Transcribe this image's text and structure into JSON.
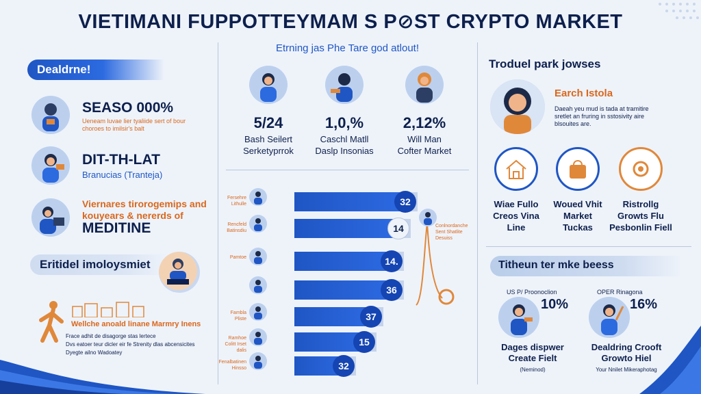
{
  "title": "VIETIMANI FUPPOTTEYMAM S P⊘ST CRYPTO MARKET",
  "left": {
    "banner": "Dealdrne!",
    "item1": {
      "title": "SEASO 000%",
      "desc": "Ueneam luvae lier tyaliide sert of bour choroes to imilsir's balt"
    },
    "item2": {
      "title": "DIT-TH-LAT",
      "sub": "Branucias (Tranteja)"
    },
    "item3": {
      "line1": "Viernares tirorogemips and",
      "line2": "kouyears & nererds of",
      "title": "MEDITINE"
    },
    "banner2": "Eritidel imoloysmiet",
    "orange_line": "Wellche anoald linane Marmry Inens",
    "bullets": [
      "Frace adhit de disagorge stas lertece",
      "Dvs eatoer teur dicler eir fe Strenity dlas abcensicites",
      "Dyegte ailno Wadoatey"
    ]
  },
  "middle": {
    "subtitle": "Etrning jas Phe Tare god atlout!",
    "stats": [
      {
        "value": "5/24",
        "label1": "Bash Seilert",
        "label2": "Serketyprrok"
      },
      {
        "value": "1,0,%",
        "label1": "Caschl Matll",
        "label2": "Daslp Insonias"
      },
      {
        "value": "2,12%",
        "label1": "Will Man",
        "label2": "Cofter Market"
      }
    ],
    "bars": [
      {
        "label": "Fersehre Lithulle",
        "value": "32"
      },
      {
        "label": "Rencfeld Batinsdiu",
        "value": "14"
      },
      {
        "label": "Pamtoe",
        "value": "14."
      },
      {
        "label": "",
        "value": "36"
      },
      {
        "label": "Fambla Pliste",
        "value": "37"
      },
      {
        "label": "Ramhoe Colitt Irset dalis",
        "value": "15"
      },
      {
        "label": "Fenalbatinen Hinsso",
        "value": "32"
      }
    ],
    "side_note": "Conlnordanche Sent Shatlite Desuiss"
  },
  "right": {
    "title": "Troduel park jowses",
    "card_title": "Earch Istola",
    "card_desc": "Daeah yeu mud is tada at tramitire sretlet an fruring in sstosivity aire blsouites are.",
    "rings": [
      {
        "label1": "Wiae Fullo",
        "label2": "Creos Vina",
        "label3": "Line"
      },
      {
        "label1": "Woued Vhit",
        "label2": "Market",
        "label3": "Tuckas"
      },
      {
        "label1": "Ristrollg",
        "label2": "Growts Flu",
        "label3": "Pesbonlin Fiell"
      }
    ],
    "banner": "Titheun ter mke beess",
    "pct_cards": [
      {
        "top": "US P/ Proonoclion",
        "pct": "10%",
        "cap1": "Dages dispwer",
        "cap2": "Create Fielt",
        "tiny": "(Neminod)"
      },
      {
        "top": "OPER Rinagona",
        "pct": "16%",
        "cap1": "Dealdring Crooft",
        "cap2": "Growto Hiel",
        "tiny": "Your Nnilet Mikeraphotag"
      }
    ]
  },
  "colors": {
    "navy": "#0d1f4c",
    "blue": "#1f56c4",
    "orange": "#d9671c",
    "bg": "#eef3fa"
  }
}
